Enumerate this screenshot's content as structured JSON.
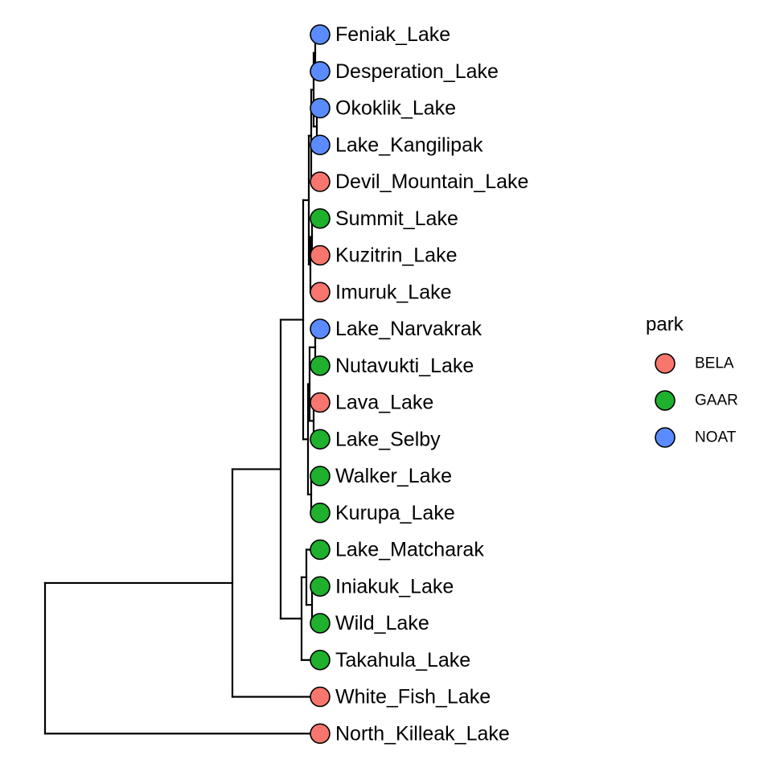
{
  "legend": {
    "title": "park",
    "items": [
      {
        "label": "BELA",
        "color": "#F8766D"
      },
      {
        "label": "GAAR",
        "color": "#1FB02E"
      },
      {
        "label": "NOAT",
        "color": "#5B8CFF"
      }
    ]
  },
  "tips": [
    {
      "label": "Feniak_Lake",
      "park": "NOAT"
    },
    {
      "label": "Desperation_Lake",
      "park": "NOAT"
    },
    {
      "label": "Okoklik_Lake",
      "park": "NOAT"
    },
    {
      "label": "Lake_Kangilipak",
      "park": "NOAT"
    },
    {
      "label": "Devil_Mountain_Lake",
      "park": "BELA"
    },
    {
      "label": "Summit_Lake",
      "park": "GAAR"
    },
    {
      "label": "Kuzitrin_Lake",
      "park": "BELA"
    },
    {
      "label": "Imuruk_Lake",
      "park": "BELA"
    },
    {
      "label": "Lake_Narvakrak",
      "park": "NOAT"
    },
    {
      "label": "Nutavukti_Lake",
      "park": "GAAR"
    },
    {
      "label": "Lava_Lake",
      "park": "BELA"
    },
    {
      "label": "Lake_Selby",
      "park": "GAAR"
    },
    {
      "label": "Walker_Lake",
      "park": "GAAR"
    },
    {
      "label": "Kurupa_Lake",
      "park": "GAAR"
    },
    {
      "label": "Lake_Matcharak",
      "park": "GAAR"
    },
    {
      "label": "Iniakuk_Lake",
      "park": "GAAR"
    },
    {
      "label": "Wild_Lake",
      "park": "GAAR"
    },
    {
      "label": "Takahula_Lake",
      "park": "GAAR"
    },
    {
      "label": "White_Fish_Lake",
      "park": "BELA"
    },
    {
      "label": "North_Killeak_Lake",
      "park": "BELA"
    }
  ]
}
